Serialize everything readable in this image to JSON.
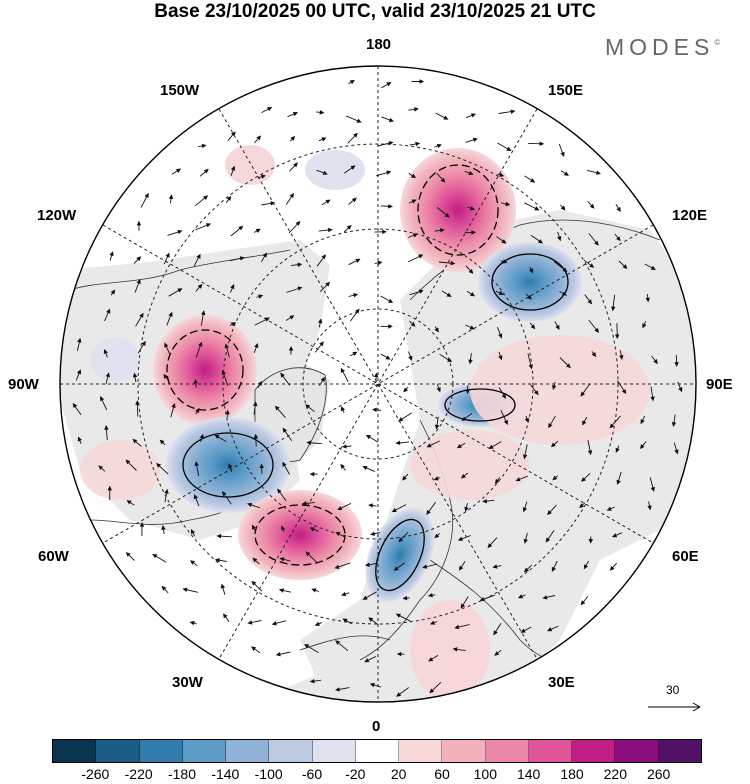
{
  "header": {
    "title": "Base 23/10/2025 00 UTC, valid 23/10/2025 21 UTC",
    "brand": "MODES",
    "brand_mark": "©"
  },
  "map": {
    "projection": "north-polar-stereographic",
    "longitude_labels": {
      "top": "180",
      "bottom": "0",
      "left": "90W",
      "right": "90E",
      "upper_left": "150W",
      "upper_right": "150E",
      "mid_left_upper": "120W",
      "mid_right_upper": "120E",
      "mid_left_lower": "60W",
      "mid_right_lower": "60E",
      "lower_left": "30W",
      "lower_right": "30E"
    },
    "reference_vector": {
      "label": "30"
    }
  },
  "colorbar": {
    "ticks": [
      "-260",
      "-220",
      "-180",
      "-140",
      "-100",
      "-60",
      "-20",
      "20",
      "60",
      "100",
      "140",
      "180",
      "220",
      "260"
    ],
    "colors": [
      "#0a3552",
      "#1c5c88",
      "#2f7cad",
      "#5e9cc8",
      "#8fb2d6",
      "#bccae2",
      "#e0e2f0",
      "#ffffff",
      "#f6d8da",
      "#f2b1bc",
      "#ec88a8",
      "#e0559a",
      "#c01e85",
      "#8a0e7c",
      "#521069"
    ]
  }
}
